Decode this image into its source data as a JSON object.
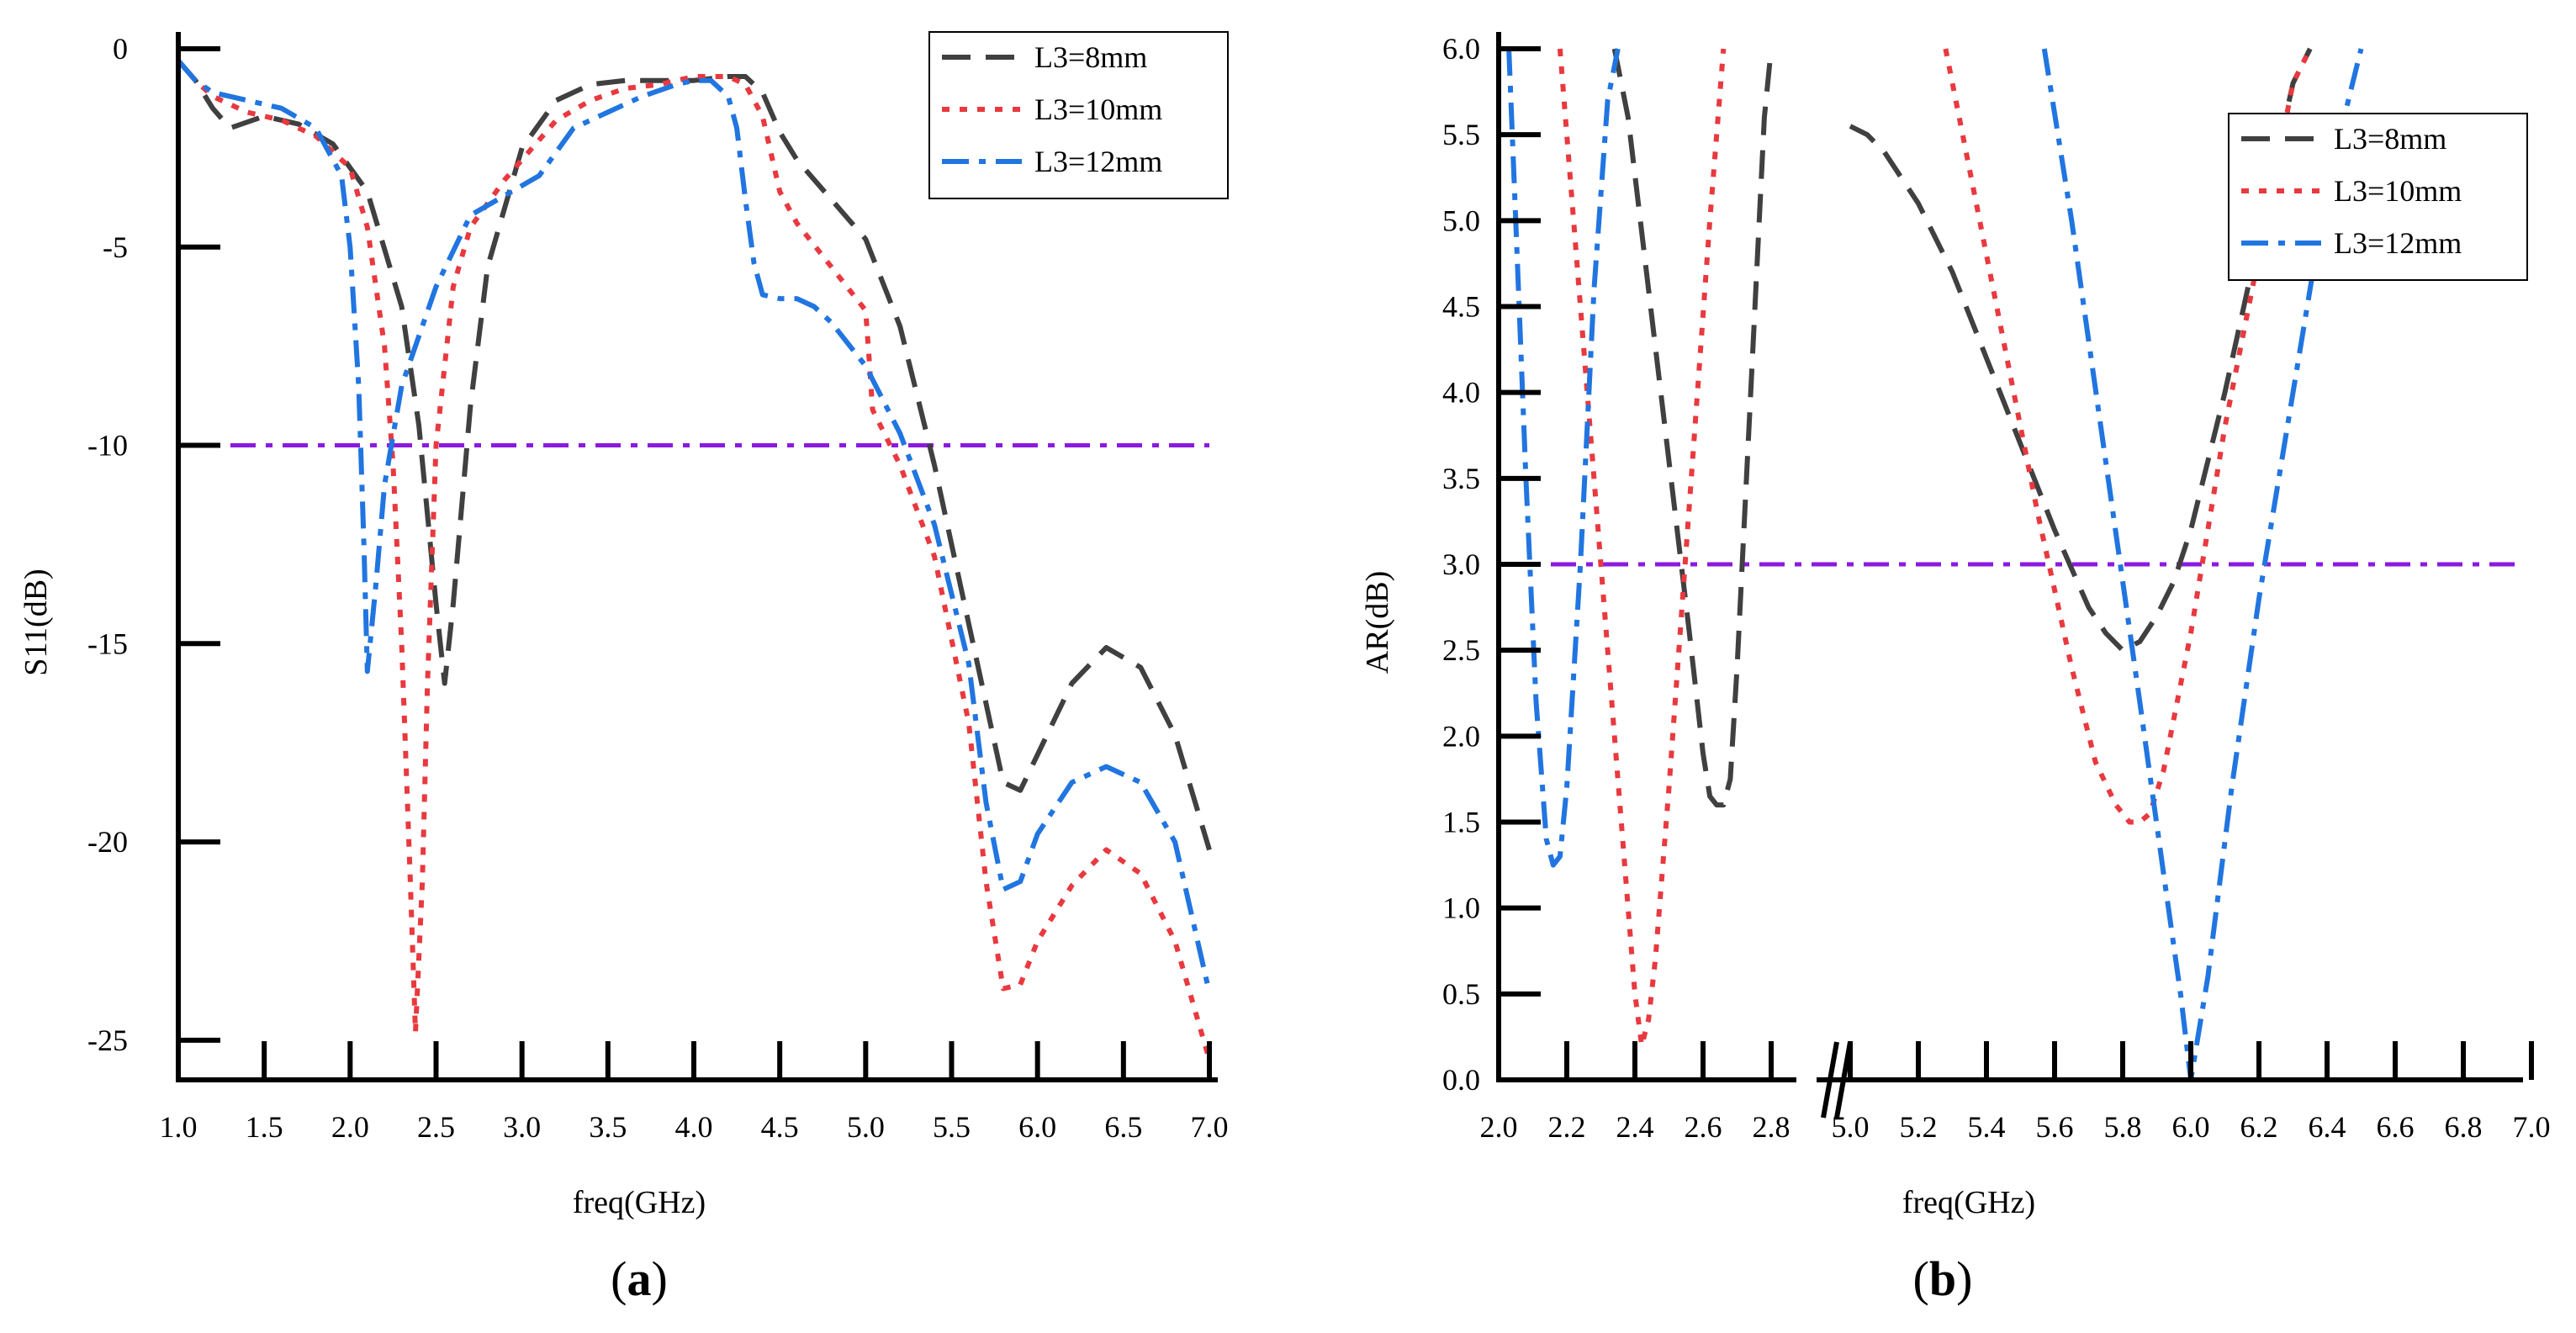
{
  "chart_data": [
    {
      "panel_label_open": "(",
      "panel_label_letter": "a",
      "panel_label_close": ")",
      "type": "line",
      "xlabel": "freq(GHz)",
      "ylabel": "S11(dB)",
      "xlim": [
        1.0,
        7.0
      ],
      "ylim": [
        -26,
        0
      ],
      "xticks": [
        "1.0",
        "1.5",
        "2.0",
        "2.5",
        "3.0",
        "3.5",
        "4.0",
        "4.5",
        "5.0",
        "5.5",
        "6.0",
        "6.5",
        "7.0"
      ],
      "yticks": [
        "0",
        "-5",
        "-10",
        "-15",
        "-20",
        "-25"
      ],
      "reference_line": {
        "y": -10,
        "color": "#8b1adf"
      },
      "legend_position": "top-right",
      "series": [
        {
          "name": "L3=8mm",
          "color": "#404040",
          "dash": "dashed",
          "x": [
            1.0,
            1.1,
            1.2,
            1.3,
            1.5,
            1.7,
            1.9,
            2.1,
            2.3,
            2.4,
            2.5,
            2.55,
            2.6,
            2.7,
            2.8,
            3.0,
            3.2,
            3.4,
            3.6,
            3.8,
            4.0,
            4.2,
            4.3,
            4.4,
            4.5,
            4.6,
            4.8,
            5.0,
            5.2,
            5.4,
            5.6,
            5.8,
            5.9,
            6.0,
            6.2,
            6.4,
            6.6,
            6.8,
            7.0
          ],
          "y": [
            -0.3,
            -0.8,
            -1.5,
            -2.0,
            -1.7,
            -1.9,
            -2.4,
            -3.6,
            -6.5,
            -9.5,
            -14,
            -16,
            -14,
            -9,
            -5.5,
            -2.5,
            -1.3,
            -0.9,
            -0.8,
            -0.8,
            -0.8,
            -0.7,
            -0.7,
            -1.1,
            -2.1,
            -2.8,
            -3.8,
            -4.8,
            -7.0,
            -10.5,
            -14.5,
            -18.5,
            -18.7,
            -17.8,
            -16.0,
            -15.1,
            -15.6,
            -17.3,
            -20.2
          ]
        },
        {
          "name": "L3=10mm",
          "color": "#e8393f",
          "dash": "dotted",
          "x": [
            1.0,
            1.1,
            1.2,
            1.4,
            1.6,
            1.8,
            2.0,
            2.1,
            2.2,
            2.25,
            2.3,
            2.35,
            2.38,
            2.42,
            2.45,
            2.5,
            2.6,
            2.7,
            2.9,
            3.0,
            3.2,
            3.4,
            3.6,
            3.8,
            4.0,
            4.2,
            4.3,
            4.4,
            4.5,
            4.6,
            4.8,
            5.0,
            5.02,
            5.04,
            5.2,
            5.4,
            5.6,
            5.7,
            5.8,
            5.9,
            6.0,
            6.2,
            6.4,
            6.6,
            6.8,
            7.0
          ],
          "y": [
            -0.3,
            -0.8,
            -1.2,
            -1.6,
            -1.8,
            -2.2,
            -3.0,
            -4.5,
            -7.5,
            -10.5,
            -15.0,
            -21.0,
            -24.8,
            -21.0,
            -16.0,
            -10.0,
            -6.0,
            -4.5,
            -3.3,
            -2.8,
            -1.8,
            -1.3,
            -1.0,
            -0.9,
            -0.7,
            -0.7,
            -0.9,
            -1.7,
            -3.6,
            -4.4,
            -5.5,
            -6.6,
            -7.8,
            -9.1,
            -10.5,
            -12.8,
            -17.0,
            -21.0,
            -23.7,
            -23.6,
            -22.5,
            -21.1,
            -20.2,
            -20.8,
            -22.5,
            -25.5
          ]
        },
        {
          "name": "L3=12mm",
          "color": "#2175e0",
          "dash": "dashdot",
          "x": [
            1.0,
            1.1,
            1.2,
            1.4,
            1.6,
            1.8,
            1.95,
            2.0,
            2.05,
            2.08,
            2.1,
            2.15,
            2.2,
            2.3,
            2.5,
            2.7,
            2.9,
            3.1,
            3.3,
            3.5,
            3.7,
            3.9,
            4.0,
            4.1,
            4.2,
            4.25,
            4.3,
            4.35,
            4.4,
            4.5,
            4.6,
            4.7,
            4.8,
            5.0,
            5.2,
            5.4,
            5.6,
            5.7,
            5.8,
            5.9,
            6.0,
            6.2,
            6.4,
            6.6,
            6.8,
            7.0
          ],
          "y": [
            -0.3,
            -0.8,
            -1.1,
            -1.3,
            -1.5,
            -2.0,
            -3.2,
            -5.0,
            -8.5,
            -12.5,
            -15.7,
            -13.5,
            -11.0,
            -8.5,
            -6.0,
            -4.2,
            -3.7,
            -3.2,
            -2.0,
            -1.6,
            -1.2,
            -0.9,
            -0.8,
            -0.8,
            -1.2,
            -2.0,
            -3.8,
            -5.4,
            -6.2,
            -6.3,
            -6.3,
            -6.5,
            -6.9,
            -8.0,
            -9.7,
            -12.0,
            -15.5,
            -19.0,
            -21.2,
            -21.0,
            -19.8,
            -18.5,
            -18.1,
            -18.5,
            -20.0,
            -23.8
          ]
        }
      ],
      "legend": [
        "L3=8mm",
        "L3=10mm",
        "L3=12mm"
      ]
    },
    {
      "panel_label_open": "(",
      "panel_label_letter": "b",
      "panel_label_close": ")",
      "type": "line",
      "xlabel": "freq(GHz)",
      "ylabel": "AR(dB)",
      "axis_break": "between 2.8 and 5.0",
      "xticks": [
        "2.0",
        "2.2",
        "2.4",
        "2.6",
        "2.8",
        "5.0",
        "5.2",
        "5.4",
        "5.6",
        "5.8",
        "6.0",
        "6.2",
        "6.4",
        "6.6",
        "6.8",
        "7.0"
      ],
      "ylim": [
        0,
        6.0
      ],
      "yticks": [
        "0.0",
        "0.5",
        "1.0",
        "1.5",
        "2.0",
        "2.5",
        "3.0",
        "3.5",
        "4.0",
        "4.5",
        "5.0",
        "5.5",
        "6.0"
      ],
      "reference_line": {
        "y": 3.0,
        "color": "#8b1adf"
      },
      "legend_position": "top-right",
      "series": [
        {
          "name": "L3=8mm",
          "color": "#404040",
          "dash": "dashed",
          "segments": [
            {
              "x": [
                2.34,
                2.38,
                2.44,
                2.5,
                2.56,
                2.6,
                2.62,
                2.64,
                2.66,
                2.68,
                2.7,
                2.72,
                2.74,
                2.76,
                2.78,
                2.8
              ],
              "y": [
                6.0,
                5.6,
                4.6,
                3.6,
                2.6,
                1.9,
                1.65,
                1.6,
                1.6,
                1.75,
                2.4,
                3.2,
                4.0,
                4.8,
                5.6,
                6.0
              ]
            },
            {
              "x": [
                5.0,
                5.05,
                5.1,
                5.2,
                5.3,
                5.4,
                5.5,
                5.6,
                5.7,
                5.75,
                5.8,
                5.85,
                5.9,
                5.95,
                6.0,
                6.1,
                6.2,
                6.3,
                6.35
              ],
              "y": [
                5.55,
                5.5,
                5.4,
                5.1,
                4.7,
                4.2,
                3.7,
                3.2,
                2.75,
                2.6,
                2.5,
                2.55,
                2.7,
                2.9,
                3.2,
                4.0,
                4.9,
                5.8,
                6.0
              ]
            }
          ]
        },
        {
          "name": "L3=10mm",
          "color": "#e8393f",
          "dash": "dotted",
          "segments": [
            {
              "x": [
                2.18,
                2.22,
                2.26,
                2.3,
                2.34,
                2.38,
                2.4,
                2.42,
                2.44,
                2.46,
                2.5,
                2.54,
                2.58,
                2.62,
                2.66
              ],
              "y": [
                6.0,
                5.0,
                4.0,
                3.0,
                2.0,
                1.0,
                0.5,
                0.2,
                0.35,
                0.7,
                1.7,
                2.8,
                3.9,
                5.0,
                6.0
              ]
            },
            {
              "x": [
                5.28,
                5.35,
                5.45,
                5.55,
                5.65,
                5.72,
                5.78,
                5.82,
                5.85,
                5.88,
                5.92,
                6.0,
                6.1,
                6.2,
                6.3,
                6.35
              ],
              "y": [
                6.0,
                5.3,
                4.3,
                3.3,
                2.4,
                1.85,
                1.6,
                1.5,
                1.5,
                1.55,
                1.8,
                2.6,
                3.8,
                4.8,
                5.8,
                6.0
              ]
            }
          ]
        },
        {
          "name": "L3=12mm",
          "color": "#2175e0",
          "dash": "dashdot",
          "segments": [
            {
              "x": [
                2.03,
                2.05,
                2.08,
                2.11,
                2.14,
                2.16,
                2.18,
                2.2,
                2.24,
                2.28,
                2.32,
                2.35
              ],
              "y": [
                6.0,
                5.0,
                3.5,
                2.2,
                1.4,
                1.25,
                1.3,
                1.7,
                3.0,
                4.6,
                5.7,
                6.0
              ]
            },
            {
              "x": [
                5.57,
                5.65,
                5.75,
                5.85,
                5.92,
                5.97,
                6.0,
                6.05,
                6.12,
                6.2,
                6.3,
                6.4,
                6.5
              ],
              "y": [
                6.0,
                5.0,
                3.6,
                2.2,
                1.2,
                0.5,
                0.0,
                0.6,
                1.7,
                2.8,
                4.0,
                5.2,
                6.0
              ]
            }
          ]
        }
      ],
      "legend": [
        "L3=8mm",
        "L3=10mm",
        "L3=12mm"
      ]
    }
  ]
}
